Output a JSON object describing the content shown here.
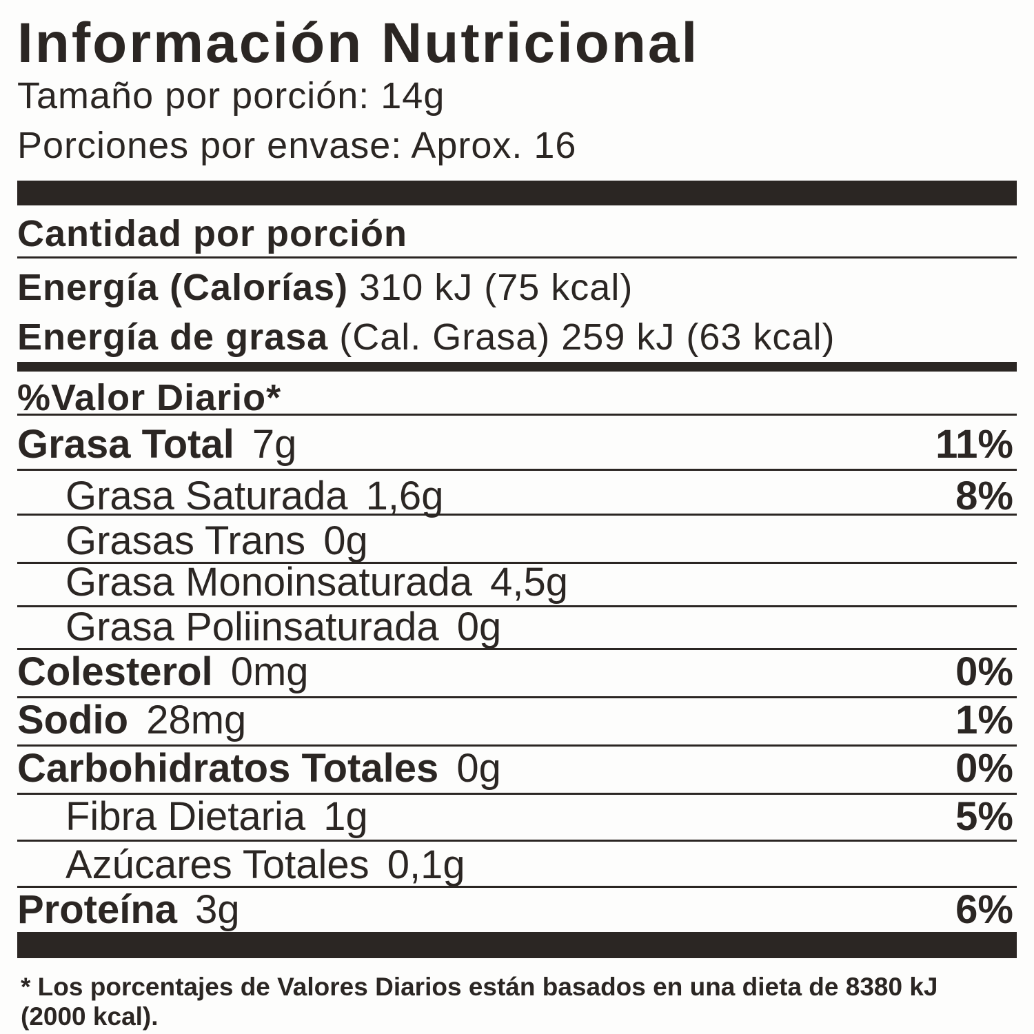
{
  "header": {
    "title": "Información Nutricional",
    "serving_size": "Tamaño por porción: 14g",
    "servings": "Porciones por envase: Aprox. 16"
  },
  "amount_per_serving": "Cantidad por porción",
  "energy": {
    "label": "Energía (Calorías)",
    "value": "310 kJ (75 kcal)"
  },
  "fat_energy": {
    "label": "Energía de grasa",
    "value": "(Cal. Grasa) 259 kJ (63 kcal)"
  },
  "daily_value_header": "%Valor Diario*",
  "rows": [
    {
      "name": "Grasa Total",
      "amount": "7g",
      "dv": "11%"
    },
    {
      "name": "Grasa Saturada",
      "amount": "1,6g",
      "dv": "8%"
    },
    {
      "name": "Grasas Trans",
      "amount": "0g"
    },
    {
      "name": "Grasa Monoinsaturada",
      "amount": "4,5g"
    },
    {
      "name": "Grasa Poliinsaturada",
      "amount": "0g"
    },
    {
      "name": "Colesterol",
      "amount": "0mg",
      "dv": "0%"
    },
    {
      "name": "Sodio",
      "amount": "28mg",
      "dv": "1%"
    },
    {
      "name": "Carbohidratos Totales",
      "amount": "0g",
      "dv": "0%"
    },
    {
      "name": "Fibra Dietaria",
      "amount": "1g",
      "dv": "5%"
    },
    {
      "name": "Azúcares Totales",
      "amount": "0,1g"
    },
    {
      "name": "Proteína",
      "amount": "3g",
      "dv": "6%"
    }
  ],
  "footnote": "* Los porcentajes de Valores Diarios están basados en una dieta de 8380 kJ (2000 kcal)."
}
